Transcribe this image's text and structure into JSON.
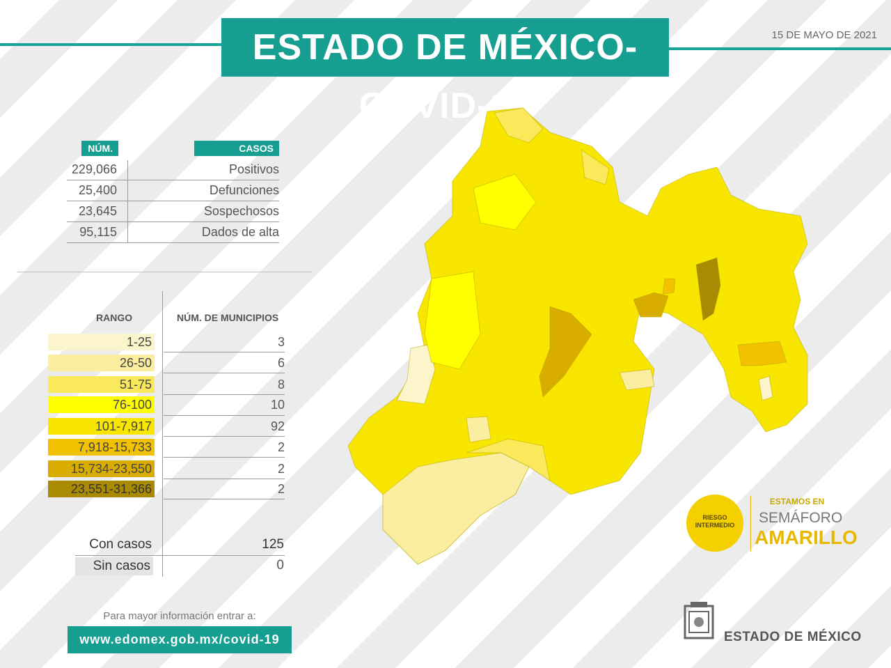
{
  "header": {
    "title": "ESTADO DE MÉXICO-COVID-19",
    "date": "15 DE MAYO DE 2021"
  },
  "summary": {
    "num_header": "NÚM.",
    "casos_header": "CASOS",
    "rows": [
      {
        "num": "229,066",
        "label": "Positivos"
      },
      {
        "num": "25,400",
        "label": "Defunciones"
      },
      {
        "num": "23,645",
        "label": "Sospechosos"
      },
      {
        "num": "95,115",
        "label": "Dados de alta"
      }
    ]
  },
  "legend": {
    "rango_header": "RANGO",
    "municipios_header": "NÚM. DE MUNICIPIOS",
    "rows": [
      {
        "range": "1-25",
        "count": "3",
        "color": "#fcf5cc"
      },
      {
        "range": "26-50",
        "count": "6",
        "color": "#fbeea0"
      },
      {
        "range": "51-75",
        "count": "8",
        "color": "#fbe95c"
      },
      {
        "range": "76-100",
        "count": "10",
        "color": "#ffff00"
      },
      {
        "range": "101-7,917",
        "count": "92",
        "color": "#f9e600"
      },
      {
        "range": "7,918-15,733",
        "count": "2",
        "color": "#f2c200"
      },
      {
        "range": "15,734-23,550",
        "count": "2",
        "color": "#d9ac00"
      },
      {
        "range": "23,551-31,366",
        "count": "2",
        "color": "#a98a00"
      }
    ]
  },
  "totals": {
    "con_casos_label": "Con casos",
    "con_casos_value": "125",
    "sin_casos_label": "Sin casos",
    "sin_casos_value": "0"
  },
  "footer": {
    "info_text": "Para mayor información entrar a:",
    "url": "www.edomex.gob.mx/covid-19",
    "brand": "ESTADO DE MÉXICO"
  },
  "semaforo": {
    "badge_line1": "RIESGO",
    "badge_line2": "INTERMEDIO",
    "estamos": "ESTAMOS EN",
    "semaforo": "SEMÁFORO",
    "color_word": "AMARILLO",
    "color": "#f4d000"
  },
  "map": {
    "region": "Estado de México municipalities choropleth"
  }
}
